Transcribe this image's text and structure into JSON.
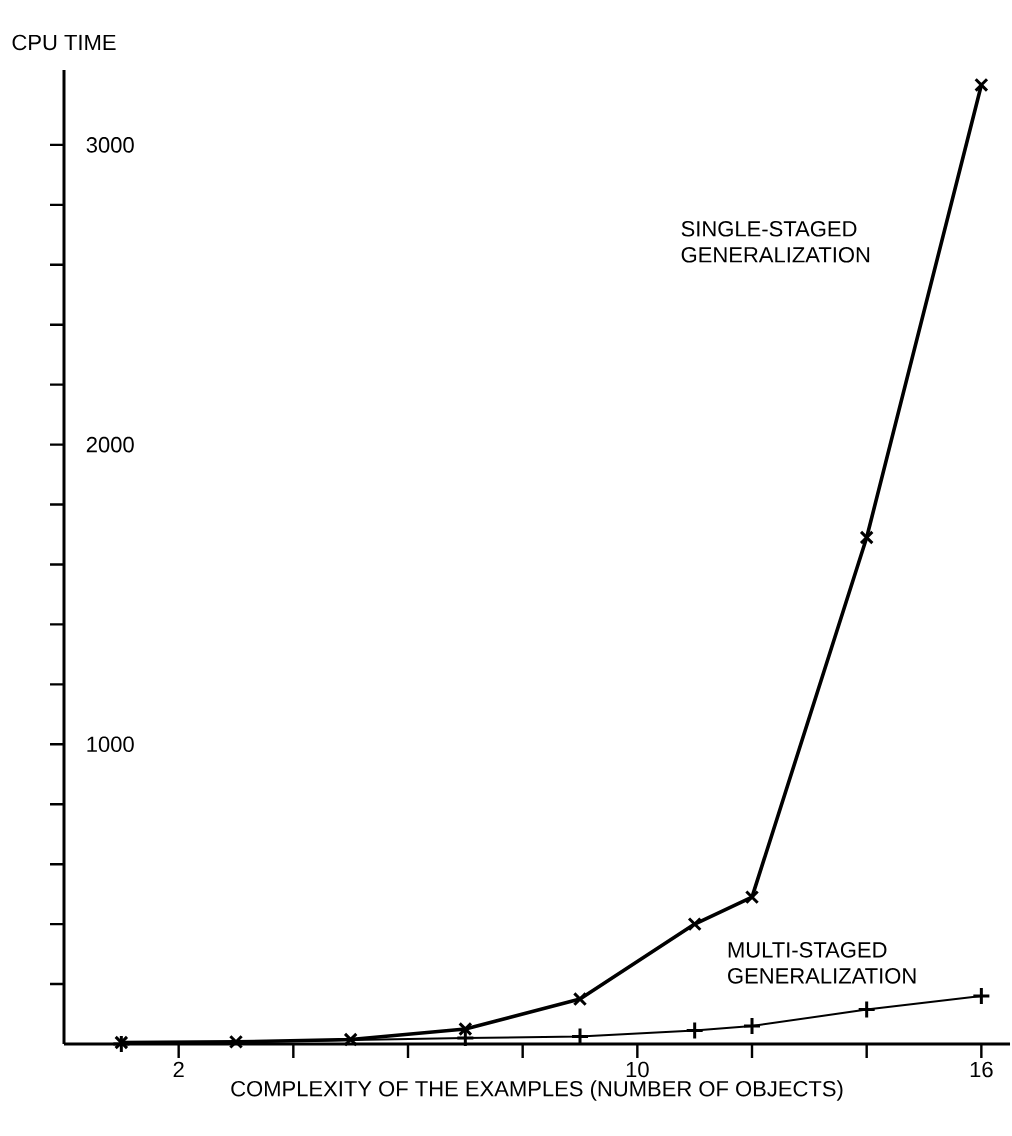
{
  "chart_data": {
    "type": "line",
    "xlabel": "COMPLEXITY OF THE EXAMPLES (NUMBER OF OBJECTS)",
    "ylabel": "CPU TIME",
    "x": [
      1,
      3,
      5,
      7,
      9,
      11,
      12,
      14,
      16
    ],
    "series": [
      {
        "name": "SINGLE-STAGED GENERALIZATION",
        "color": "#000000",
        "marker": "cross",
        "values": [
          5,
          7,
          15,
          50,
          150,
          400,
          490,
          1690,
          3200
        ]
      },
      {
        "name": "MULTI-STAGED GENERALIZATION",
        "color": "#000000",
        "marker": "plus",
        "values": [
          0,
          null,
          null,
          20,
          25,
          45,
          60,
          115,
          160
        ]
      }
    ],
    "xlim": [
      0,
      16.5
    ],
    "ylim": [
      0,
      3250
    ],
    "xticks": [
      {
        "value": 2,
        "label": "2"
      },
      {
        "value": 4,
        "label": null
      },
      {
        "value": 6,
        "label": null
      },
      {
        "value": 8,
        "label": null
      },
      {
        "value": 10,
        "label": "10"
      },
      {
        "value": 12,
        "label": null
      },
      {
        "value": 14,
        "label": null
      },
      {
        "value": 16,
        "label": "16"
      }
    ],
    "yticks": [
      {
        "value": 200,
        "label": null
      },
      {
        "value": 400,
        "label": null
      },
      {
        "value": 600,
        "label": null
      },
      {
        "value": 800,
        "label": null
      },
      {
        "value": 1000,
        "label": "1000"
      },
      {
        "value": 1200,
        "label": null
      },
      {
        "value": 1400,
        "label": null
      },
      {
        "value": 1600,
        "label": null
      },
      {
        "value": 1800,
        "label": null
      },
      {
        "value": 2000,
        "label": "2000"
      },
      {
        "value": 2200,
        "label": null
      },
      {
        "value": 2400,
        "label": null
      },
      {
        "value": 2600,
        "label": null
      },
      {
        "value": 2800,
        "label": null
      },
      {
        "value": 3000,
        "label": "3000"
      }
    ],
    "line_style": "solid",
    "grid": false
  }
}
